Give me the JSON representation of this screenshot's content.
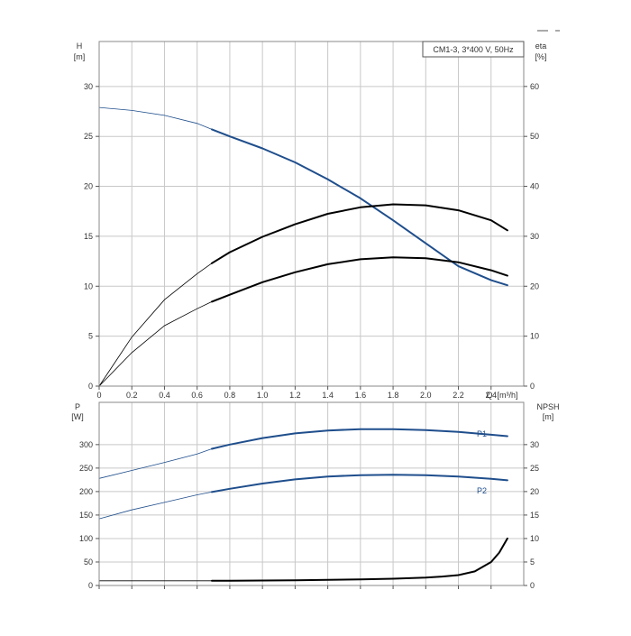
{
  "chart_data": [
    {
      "type": "line",
      "title": "CM1-3, 3*400 V, 50Hz",
      "xlabel": "Q [m³/h]",
      "xlabel_parts": [
        "Q",
        "[m³/h]"
      ],
      "xlim": [
        0,
        2.6
      ],
      "x_ticks": [
        0,
        0.2,
        0.4,
        0.6,
        0.8,
        1.0,
        1.2,
        1.4,
        1.6,
        1.8,
        2.0,
        2.2,
        2.4
      ],
      "x_tick_labels": [
        "0",
        "0.2",
        "0.4",
        "0.6",
        "0.8",
        "1.0",
        "1.2",
        "1.4",
        "1.6",
        "1.8",
        "2.0",
        "2.2",
        "2.4"
      ],
      "ylabel_left": [
        "H",
        "[m]"
      ],
      "ylim_left": [
        0,
        34.5
      ],
      "y_ticks_left": [
        0,
        5,
        10,
        15,
        20,
        25,
        30
      ],
      "ylabel_right": [
        "eta",
        "[%]"
      ],
      "ylim_right": [
        0,
        69
      ],
      "y_ticks_right": [
        0,
        10,
        20,
        30,
        40,
        50,
        60
      ],
      "grid": true,
      "operating_range_start": 0.69,
      "series": [
        {
          "axis": "left",
          "color": "#1f4e8c",
          "x": [
            0,
            0.2,
            0.4,
            0.6,
            0.69,
            0.8,
            1.0,
            1.2,
            1.4,
            1.6,
            1.8,
            2.0,
            2.2,
            2.4,
            2.5
          ],
          "values": [
            27.9,
            27.6,
            27.1,
            26.3,
            25.7,
            25.0,
            23.8,
            22.4,
            20.7,
            18.8,
            16.6,
            14.3,
            12.0,
            10.6,
            10.1
          ]
        },
        {
          "axis": "right",
          "color": "#000000",
          "x": [
            0,
            0.2,
            0.4,
            0.6,
            0.69,
            0.8,
            1.0,
            1.2,
            1.4,
            1.6,
            1.8,
            2.0,
            2.2,
            2.4,
            2.5
          ],
          "values": [
            0,
            9.8,
            17.3,
            22.5,
            24.6,
            26.8,
            29.9,
            32.4,
            34.5,
            35.8,
            36.4,
            36.2,
            35.2,
            33.2,
            31.2
          ]
        },
        {
          "axis": "right",
          "color": "#000000",
          "x": [
            0,
            0.2,
            0.4,
            0.6,
            0.69,
            0.8,
            1.0,
            1.2,
            1.4,
            1.6,
            1.8,
            2.0,
            2.2,
            2.4,
            2.5
          ],
          "values": [
            0,
            6.7,
            12.1,
            15.5,
            16.9,
            18.3,
            20.8,
            22.8,
            24.4,
            25.4,
            25.8,
            25.6,
            24.8,
            23.2,
            22.1
          ]
        }
      ]
    },
    {
      "type": "line",
      "xlim": [
        0,
        2.6
      ],
      "x_ticks": [
        0,
        0.2,
        0.4,
        0.6,
        0.8,
        1.0,
        1.2,
        1.4,
        1.6,
        1.8,
        2.0,
        2.2,
        2.4
      ],
      "ylabel_left": [
        "P",
        "[W]"
      ],
      "ylim_left": [
        0,
        390
      ],
      "y_ticks_left": [
        0,
        50,
        100,
        150,
        200,
        250,
        300
      ],
      "ylabel_right": [
        "NPSH",
        "[m]"
      ],
      "ylim_right": [
        0,
        39
      ],
      "y_ticks_right": [
        0,
        5,
        10,
        15,
        20,
        25,
        30
      ],
      "grid": true,
      "operating_range_start": 0.69,
      "series": [
        {
          "name": "P1",
          "axis": "left",
          "color": "#1f4e8c",
          "x": [
            0,
            0.2,
            0.4,
            0.6,
            0.69,
            0.8,
            1.0,
            1.2,
            1.4,
            1.6,
            1.8,
            2.0,
            2.2,
            2.4,
            2.5
          ],
          "values": [
            228,
            245,
            262,
            280,
            291,
            300,
            314,
            324,
            330,
            333,
            333,
            331,
            327,
            321,
            318
          ]
        },
        {
          "name": "P2",
          "axis": "left",
          "color": "#1f4e8c",
          "x": [
            0,
            0.2,
            0.4,
            0.6,
            0.69,
            0.8,
            1.0,
            1.2,
            1.4,
            1.6,
            1.8,
            2.0,
            2.2,
            2.4,
            2.5
          ],
          "values": [
            142,
            161,
            177,
            193,
            199,
            206,
            217,
            226,
            232,
            235,
            236,
            235,
            232,
            227,
            224
          ]
        },
        {
          "name": "",
          "axis": "right",
          "color": "#000000",
          "x": [
            0,
            0.69,
            0.8,
            1.0,
            1.2,
            1.4,
            1.6,
            1.8,
            2.0,
            2.1,
            2.2,
            2.3,
            2.4,
            2.45,
            2.5
          ],
          "values": [
            1.0,
            1.0,
            1.0,
            1.05,
            1.1,
            1.2,
            1.3,
            1.45,
            1.7,
            1.9,
            2.2,
            3.0,
            5.0,
            7.0,
            10.0
          ]
        }
      ]
    }
  ]
}
